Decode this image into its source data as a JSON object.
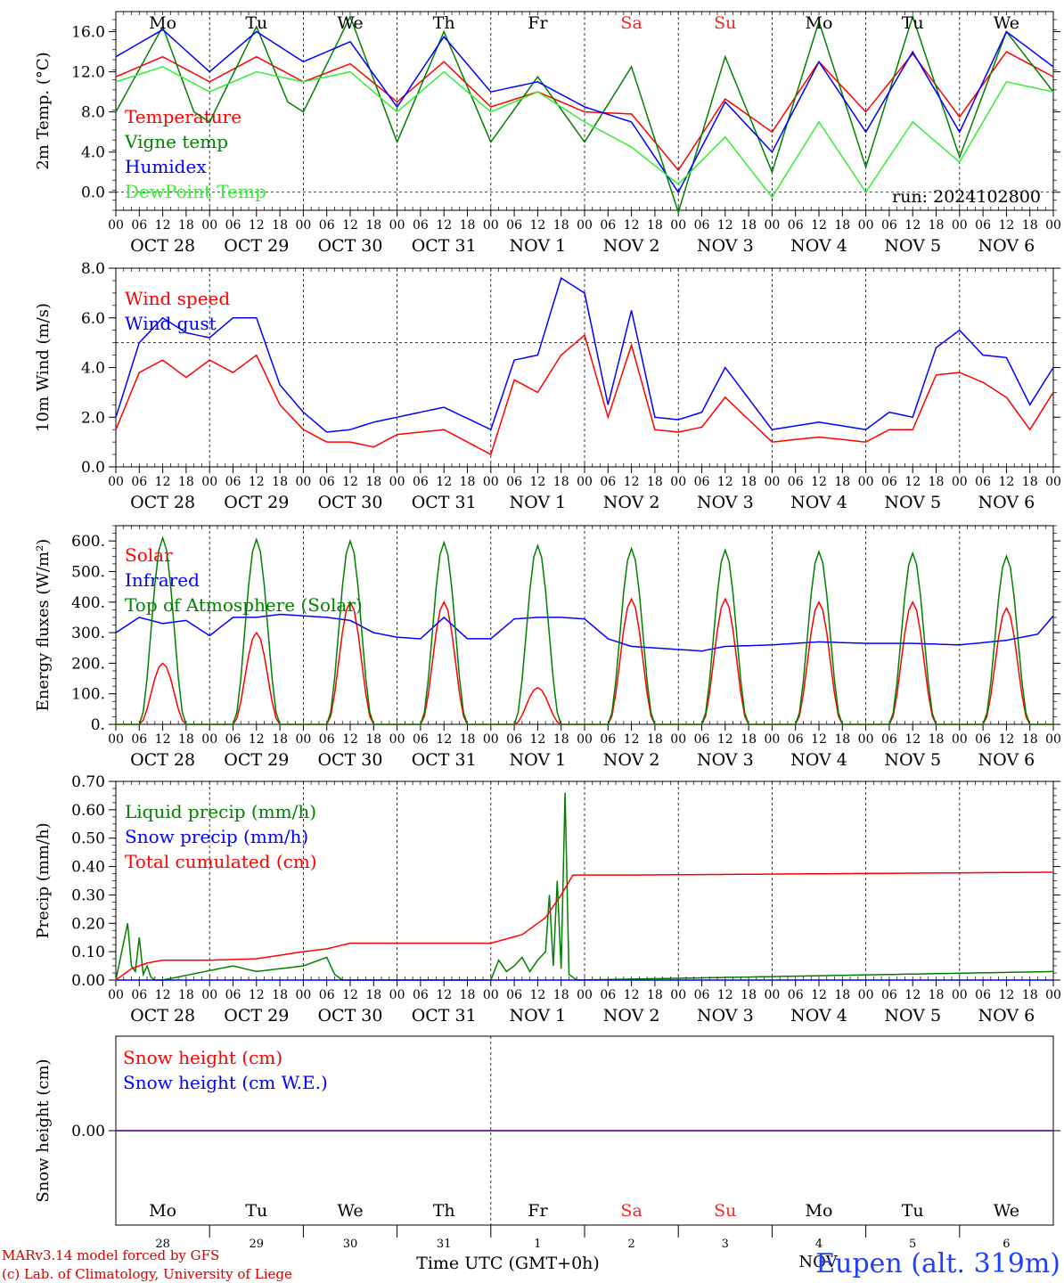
{
  "days_top": [
    {
      "label": "Mo",
      "color": "#000000"
    },
    {
      "label": "Tu",
      "color": "#000000"
    },
    {
      "label": "We",
      "color": "#000000"
    },
    {
      "label": "Th",
      "color": "#000000"
    },
    {
      "label": "Fr",
      "color": "#000000"
    },
    {
      "label": "Sa",
      "color": "#ff2020"
    },
    {
      "label": "Su",
      "color": "#ff2020"
    },
    {
      "label": "Mo",
      "color": "#000000"
    },
    {
      "label": "Tu",
      "color": "#000000"
    },
    {
      "label": "We",
      "color": "#000000"
    }
  ],
  "date_labels": [
    "OCT 28",
    "OCT 29",
    "OCT 30",
    "OCT 31",
    "NOV 1",
    "NOV 2",
    "NOV 3",
    "NOV 4",
    "NOV 5",
    "NOV 6"
  ],
  "hour_labels": [
    "00",
    "06",
    "12",
    "18"
  ],
  "run_label": "run: 2024102800",
  "colors": {
    "red": "#ff0000",
    "green": "#008000",
    "blue": "#0000ff",
    "lightgreen": "#33ee33",
    "purple": "#7030a0",
    "darkgreen": "#1a8a1a",
    "title_blue": "#1f3fff"
  },
  "chart_data": [
    {
      "type": "line",
      "ylabel": "2m Temp. (°C)",
      "ylim": [
        -1.8,
        18.0
      ],
      "yticks": [
        0.0,
        4.0,
        8.0,
        12.0,
        16.0
      ],
      "ytick_labels": [
        "0.0",
        "4.0",
        "8.0",
        "12.0",
        "16.0"
      ],
      "ref_line": 0.0,
      "x_start": "2024-10-28 00 UTC",
      "series": [
        {
          "name": "Temperature",
          "color": "#ff0000",
          "x_hours": [
            0,
            12,
            24,
            36,
            48,
            60,
            72,
            84,
            96,
            108,
            120,
            132,
            144,
            156,
            168,
            180,
            192,
            204,
            216,
            228,
            240
          ],
          "values": [
            11.5,
            13.5,
            11.0,
            13.5,
            11.0,
            12.8,
            9.0,
            13.0,
            8.5,
            10.0,
            8.0,
            7.8,
            2.2,
            9.3,
            6.0,
            13.0,
            8.0,
            13.8,
            7.5,
            14.0,
            11.5
          ]
        },
        {
          "name": "Vigne temp",
          "color": "#008000",
          "x_hours": [
            0,
            12,
            20,
            24,
            36,
            44,
            48,
            60,
            72,
            84,
            96,
            108,
            120,
            132,
            144,
            156,
            168,
            180,
            192,
            204,
            216,
            228,
            240
          ],
          "values": [
            8.0,
            16.5,
            8.0,
            7.0,
            16.5,
            9.0,
            8.0,
            17.5,
            5.0,
            16.0,
            5.0,
            11.5,
            5.0,
            12.5,
            -2.0,
            13.5,
            2.0,
            17.0,
            2.5,
            17.5,
            3.5,
            16.0,
            10.0
          ]
        },
        {
          "name": "Humidex",
          "color": "#0000ff",
          "x_hours": [
            0,
            12,
            24,
            36,
            48,
            60,
            72,
            84,
            96,
            108,
            120,
            132,
            144,
            156,
            168,
            180,
            192,
            204,
            216,
            228,
            240
          ],
          "values": [
            13.5,
            16.2,
            12.0,
            16.0,
            13.0,
            15.0,
            8.5,
            15.5,
            10.0,
            11.0,
            8.5,
            7.0,
            0.0,
            9.0,
            4.0,
            13.0,
            6.0,
            14.0,
            6.0,
            16.0,
            12.5
          ]
        },
        {
          "name": "DewPoint Temp",
          "color": "#33ee33",
          "x_hours": [
            0,
            12,
            24,
            36,
            48,
            60,
            72,
            84,
            96,
            108,
            120,
            132,
            144,
            156,
            168,
            180,
            192,
            204,
            216,
            228,
            240
          ],
          "values": [
            11.0,
            12.5,
            10.0,
            12.0,
            11.0,
            12.0,
            8.0,
            12.0,
            8.0,
            10.0,
            7.0,
            4.5,
            0.8,
            5.5,
            -0.5,
            7.0,
            0.0,
            7.0,
            3.0,
            11.0,
            10.0
          ]
        }
      ]
    },
    {
      "type": "line",
      "ylabel": "10m Wind (m/s)",
      "ylim": [
        0.0,
        8.0
      ],
      "yticks": [
        0.0,
        2.0,
        4.0,
        6.0,
        8.0
      ],
      "ytick_labels": [
        "0.0",
        "2.0",
        "4.0",
        "6.0",
        "8.0"
      ],
      "ref_line": 5.0,
      "series": [
        {
          "name": "Wind speed",
          "color": "#ff0000",
          "x_hours": [
            0,
            6,
            12,
            18,
            24,
            30,
            36,
            42,
            48,
            54,
            60,
            66,
            72,
            84,
            96,
            102,
            108,
            114,
            120,
            126,
            132,
            138,
            144,
            150,
            156,
            168,
            180,
            192,
            198,
            204,
            210,
            216,
            222,
            228,
            234,
            240
          ],
          "values": [
            1.5,
            3.8,
            4.3,
            3.6,
            4.3,
            3.8,
            4.5,
            2.5,
            1.5,
            1.0,
            1.0,
            0.8,
            1.3,
            1.5,
            0.5,
            3.5,
            3.0,
            4.5,
            5.3,
            2.0,
            4.9,
            1.5,
            1.4,
            1.6,
            2.8,
            1.0,
            1.2,
            1.0,
            1.5,
            1.5,
            3.7,
            3.8,
            3.4,
            2.8,
            1.5,
            3.0
          ]
        },
        {
          "name": "Wind gust",
          "color": "#0000ff",
          "x_hours": [
            0,
            6,
            12,
            18,
            24,
            30,
            36,
            42,
            48,
            54,
            60,
            66,
            72,
            84,
            96,
            102,
            108,
            114,
            120,
            126,
            132,
            138,
            144,
            150,
            156,
            168,
            180,
            192,
            198,
            204,
            210,
            216,
            222,
            228,
            234,
            240
          ],
          "values": [
            2.0,
            5.0,
            6.0,
            5.4,
            5.2,
            6.0,
            6.0,
            3.3,
            2.2,
            1.4,
            1.5,
            1.8,
            2.0,
            2.4,
            1.5,
            4.3,
            4.5,
            7.6,
            7.0,
            2.5,
            6.3,
            2.0,
            1.9,
            2.2,
            4.0,
            1.5,
            1.8,
            1.5,
            2.2,
            2.0,
            4.8,
            5.5,
            4.5,
            4.4,
            2.5,
            4.0
          ]
        }
      ]
    },
    {
      "type": "line",
      "ylabel": "Energy fluxes (W/m²)",
      "ylim": [
        0,
        650
      ],
      "yticks": [
        0,
        100,
        200,
        300,
        400,
        500,
        600
      ],
      "ytick_labels": [
        "0.",
        "100.",
        "200.",
        "300.",
        "400.",
        "500.",
        "600."
      ],
      "series": [
        {
          "name": "Solar",
          "color": "#ff0000",
          "peaks": [
            200,
            300,
            400,
            400,
            120,
            410,
            410,
            400,
            400,
            380
          ]
        },
        {
          "name": "Infrared",
          "color": "#0000ff",
          "x_hours": [
            0,
            6,
            12,
            18,
            24,
            30,
            36,
            42,
            48,
            54,
            60,
            66,
            72,
            78,
            84,
            90,
            96,
            102,
            108,
            114,
            120,
            126,
            132,
            138,
            144,
            150,
            156,
            168,
            180,
            192,
            204,
            216,
            228,
            236,
            240
          ],
          "values": [
            300,
            350,
            330,
            340,
            290,
            350,
            350,
            360,
            355,
            350,
            340,
            300,
            285,
            280,
            350,
            280,
            280,
            345,
            350,
            350,
            345,
            280,
            255,
            250,
            245,
            240,
            255,
            260,
            270,
            265,
            265,
            260,
            275,
            295,
            355
          ]
        },
        {
          "name": "Top of Atmosphere (Solar)",
          "color": "#008000",
          "peaks": [
            610,
            605,
            600,
            595,
            585,
            575,
            570,
            565,
            560,
            550
          ]
        }
      ]
    },
    {
      "type": "line",
      "ylabel": "Precip (mm/h)",
      "ylim": [
        0,
        0.7
      ],
      "yticks": [
        0.0,
        0.1,
        0.2,
        0.3,
        0.4,
        0.5,
        0.6,
        0.7
      ],
      "ytick_labels": [
        "0.00",
        "0.10",
        "0.20",
        "0.30",
        "0.40",
        "0.50",
        "0.60",
        "0.70"
      ],
      "series": [
        {
          "name": "Liquid precip (mm/h)",
          "color": "#008000",
          "x_hours": [
            0,
            3,
            4,
            5,
            6,
            7,
            8,
            9,
            10,
            12,
            30,
            36,
            48,
            54,
            56,
            58,
            60,
            96,
            98,
            100,
            102,
            104,
            106,
            108,
            110,
            111,
            112,
            113,
            114,
            115,
            116,
            117,
            118,
            240
          ],
          "values": [
            0,
            0.2,
            0.05,
            0.03,
            0.15,
            0.02,
            0.05,
            0.01,
            0,
            0,
            0.05,
            0.03,
            0.05,
            0.08,
            0.02,
            0,
            0,
            0,
            0.07,
            0.03,
            0.05,
            0.08,
            0.03,
            0.07,
            0.1,
            0.3,
            0.05,
            0.35,
            0.04,
            0.66,
            0.02,
            0.01,
            0,
            0.03
          ]
        },
        {
          "name": "Snow precip (mm/h)",
          "color": "#0000ff",
          "x_hours": [
            0,
            240
          ],
          "values": [
            0,
            0
          ]
        },
        {
          "name": "Total cumulated (cm)",
          "color": "#ff0000",
          "x_hours": [
            0,
            4,
            8,
            12,
            24,
            36,
            48,
            54,
            60,
            72,
            84,
            96,
            104,
            110,
            114,
            117,
            120,
            132,
            240
          ],
          "values": [
            0,
            0.04,
            0.06,
            0.07,
            0.07,
            0.075,
            0.1,
            0.11,
            0.13,
            0.13,
            0.13,
            0.13,
            0.16,
            0.22,
            0.3,
            0.37,
            0.37,
            0.37,
            0.38
          ]
        }
      ]
    },
    {
      "type": "line",
      "ylabel": "Snow height (cm)",
      "ylim": [
        -1,
        1
      ],
      "yticks": [
        0.0
      ],
      "ytick_labels": [
        "0.00"
      ],
      "series": [
        {
          "name": "Snow height (cm)",
          "color": "#ff0000",
          "x_hours": [
            0,
            240
          ],
          "values": [
            0,
            0
          ]
        },
        {
          "name": "Snow height (cm W.E.)",
          "color": "#0000ff",
          "x_hours": [
            0,
            240
          ],
          "values": [
            0,
            0
          ]
        }
      ]
    }
  ],
  "bottom_days": [
    "Mo",
    "Tu",
    "We",
    "Th",
    "Fr",
    "Sa",
    "Su",
    "Mo",
    "Tu",
    "We"
  ],
  "bottom_dates": [
    "28",
    "29",
    "30",
    "31",
    "1",
    "2",
    "3",
    "4",
    "5",
    "6"
  ],
  "bottom_month": "NOV",
  "xlabel": "Time UTC (GMT+0h)",
  "credit_1": "MARv3.14 model forced by GFS",
  "credit_2": "(c) Lab. of Climatology, University of Liege",
  "station": "Eupen (alt. 319m)"
}
